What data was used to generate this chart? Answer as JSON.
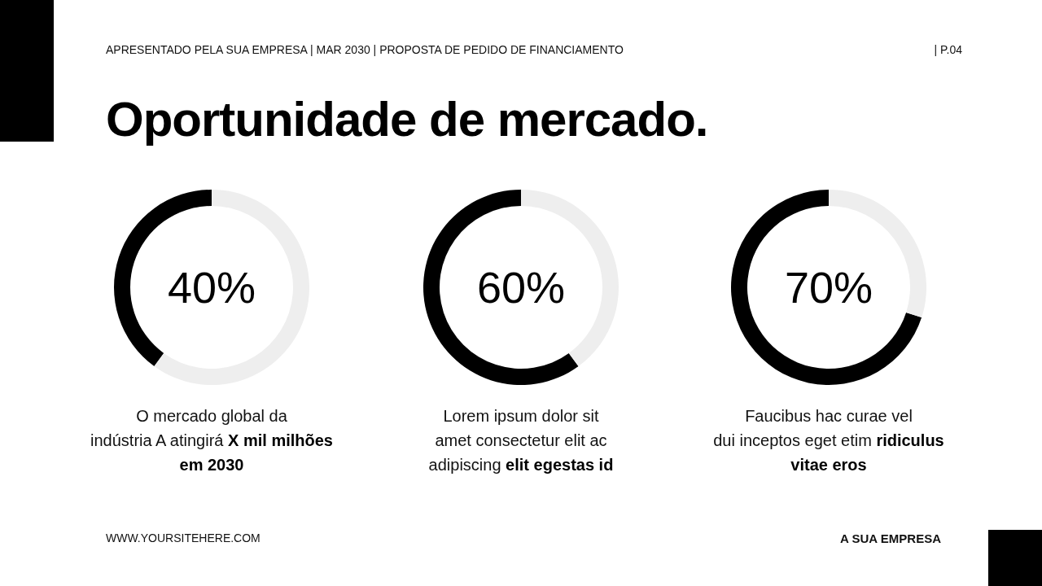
{
  "chart_data": [
    {
      "type": "other",
      "title": "Oportunidade de mercado.",
      "subtitle": "APRESENTADO PELA SUA EMPRESA | MAR 2030 | PROPOSTA DE PEDIDO DE FINANCIAMENTO",
      "annotations": [
        "| P.04",
        "WWW.YOURSITEHERE.COM",
        "A SUA EMPRESA"
      ]
    },
    {
      "type": "donut",
      "categories": [
        null,
        null
      ],
      "values": [
        40,
        60
      ],
      "colors": [
        "#000000",
        "#eeeeee"
      ],
      "value_labels": [
        "40%",
        null
      ],
      "annotations": [
        "O mercado global da\nindústria A atingirá",
        "X mil milhões em 2030"
      ]
    },
    {
      "type": "donut",
      "categories": [
        null,
        null
      ],
      "values": [
        60,
        40
      ],
      "colors": [
        "#000000",
        "#eeeeee"
      ],
      "value_labels": [
        "60%",
        null
      ],
      "annotations": [
        "Lorem ipsum dolor sit\namet consectetur elit ac\nadipiscing",
        "elit egestas id"
      ]
    },
    {
      "type": "donut",
      "categories": [
        null,
        null
      ],
      "values": [
        70,
        30
      ],
      "colors": [
        "#000000",
        "#eeeeee"
      ],
      "value_labels": [
        "70%",
        null
      ],
      "annotations": [
        "Faucibus hac curae vel\ndui inceptos eget etim",
        "ridiculus vitae eros"
      ]
    }
  ]
}
